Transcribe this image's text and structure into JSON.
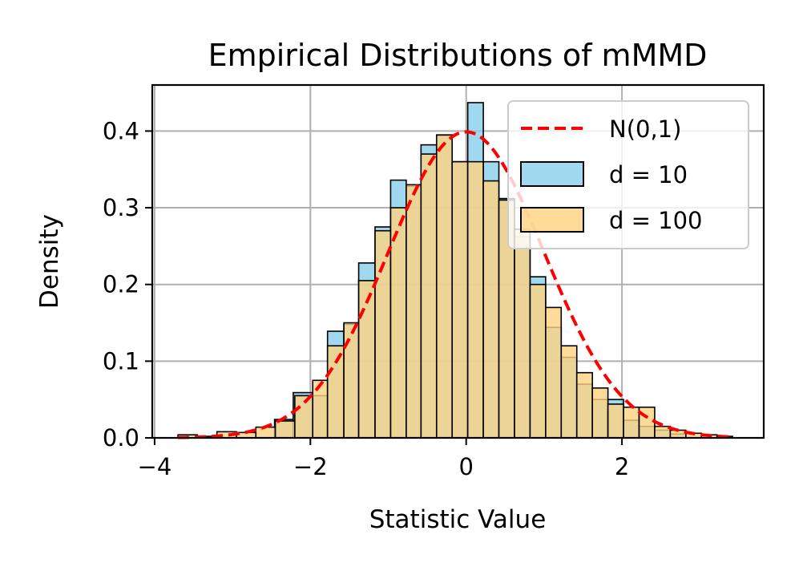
{
  "chart_data": {
    "type": "histogram",
    "title": "Empirical Distributions of mMMD",
    "xlabel": "Statistic Value",
    "ylabel": "Density",
    "xlim": [
      -4.03,
      3.82
    ],
    "ylim": [
      0.0,
      0.46
    ],
    "xticks": [
      -4,
      -2,
      0,
      2
    ],
    "xtick_labels": [
      "−4",
      "−2",
      "0",
      "2"
    ],
    "yticks": [
      0.0,
      0.1,
      0.2,
      0.3,
      0.4
    ],
    "ytick_labels": [
      "0.0",
      "0.1",
      "0.2",
      "0.3",
      "0.4"
    ],
    "grid": true,
    "legend": {
      "location": "upper right",
      "entries": [
        {
          "label": "N(0,1)",
          "kind": "line",
          "color": "#ff0000",
          "style": "dashed"
        },
        {
          "label": "d = 10",
          "kind": "patch",
          "color": "#87ceeb"
        },
        {
          "label": "d = 100",
          "kind": "patch",
          "color": "#ffd27f"
        }
      ]
    },
    "series": [
      {
        "name": "d = 10",
        "color": "#87ceeb",
        "alpha": 0.8,
        "bins": [
          {
            "x0": -2.46,
            "x1": -2.22,
            "density": 0.024
          },
          {
            "x0": -2.22,
            "x1": -1.97,
            "density": 0.059
          },
          {
            "x0": -1.97,
            "x1": -1.78,
            "density": 0.055
          },
          {
            "x0": -1.78,
            "x1": -1.57,
            "density": 0.139
          },
          {
            "x0": -1.57,
            "x1": -1.38,
            "density": 0.148
          },
          {
            "x0": -1.38,
            "x1": -1.17,
            "density": 0.228
          },
          {
            "x0": -1.17,
            "x1": -0.97,
            "density": 0.275
          },
          {
            "x0": -0.97,
            "x1": -0.77,
            "density": 0.336
          },
          {
            "x0": -0.77,
            "x1": -0.58,
            "density": 0.328
          },
          {
            "x0": -0.58,
            "x1": -0.38,
            "density": 0.382
          },
          {
            "x0": -0.38,
            "x1": -0.18,
            "density": 0.394
          },
          {
            "x0": -0.18,
            "x1": 0.02,
            "density": 0.36
          },
          {
            "x0": 0.02,
            "x1": 0.22,
            "density": 0.437
          },
          {
            "x0": 0.22,
            "x1": 0.42,
            "density": 0.36
          },
          {
            "x0": 0.42,
            "x1": 0.62,
            "density": 0.312
          },
          {
            "x0": 0.62,
            "x1": 0.82,
            "density": 0.262
          },
          {
            "x0": 0.82,
            "x1": 1.02,
            "density": 0.21
          },
          {
            "x0": 1.02,
            "x1": 1.22,
            "density": 0.144
          },
          {
            "x0": 1.22,
            "x1": 1.42,
            "density": 0.105
          },
          {
            "x0": 1.42,
            "x1": 1.62,
            "density": 0.07
          },
          {
            "x0": 1.62,
            "x1": 1.82,
            "density": 0.05
          },
          {
            "x0": 1.82,
            "x1": 2.02,
            "density": 0.05
          },
          {
            "x0": 2.02,
            "x1": 2.22,
            "density": 0.023
          },
          {
            "x0": 2.22,
            "x1": 2.42,
            "density": 0.015
          },
          {
            "x0": 2.42,
            "x1": 2.62,
            "density": 0.01
          },
          {
            "x0": 2.62,
            "x1": 2.82,
            "density": 0.005
          }
        ]
      },
      {
        "name": "d = 100",
        "color": "#ffd27f",
        "alpha": 0.8,
        "bins": [
          {
            "x0": -3.7,
            "x1": -3.45,
            "density": 0.004
          },
          {
            "x0": -3.45,
            "x1": -3.2,
            "density": 0.002
          },
          {
            "x0": -3.2,
            "x1": -2.95,
            "density": 0.008
          },
          {
            "x0": -2.95,
            "x1": -2.7,
            "density": 0.007
          },
          {
            "x0": -2.7,
            "x1": -2.45,
            "density": 0.014
          },
          {
            "x0": -2.45,
            "x1": -2.2,
            "density": 0.022
          },
          {
            "x0": -2.2,
            "x1": -1.97,
            "density": 0.055
          },
          {
            "x0": -1.97,
            "x1": -1.78,
            "density": 0.075
          },
          {
            "x0": -1.78,
            "x1": -1.57,
            "density": 0.12
          },
          {
            "x0": -1.57,
            "x1": -1.38,
            "density": 0.15
          },
          {
            "x0": -1.38,
            "x1": -1.17,
            "density": 0.205
          },
          {
            "x0": -1.17,
            "x1": -0.97,
            "density": 0.27
          },
          {
            "x0": -0.97,
            "x1": -0.77,
            "density": 0.3
          },
          {
            "x0": -0.77,
            "x1": -0.58,
            "density": 0.33
          },
          {
            "x0": -0.58,
            "x1": -0.38,
            "density": 0.37
          },
          {
            "x0": -0.38,
            "x1": -0.18,
            "density": 0.395
          },
          {
            "x0": -0.18,
            "x1": 0.02,
            "density": 0.36
          },
          {
            "x0": 0.02,
            "x1": 0.22,
            "density": 0.36
          },
          {
            "x0": 0.22,
            "x1": 0.42,
            "density": 0.335
          },
          {
            "x0": 0.42,
            "x1": 0.62,
            "density": 0.31
          },
          {
            "x0": 0.62,
            "x1": 0.82,
            "density": 0.272
          },
          {
            "x0": 0.82,
            "x1": 1.02,
            "density": 0.2
          },
          {
            "x0": 1.02,
            "x1": 1.22,
            "density": 0.17
          },
          {
            "x0": 1.22,
            "x1": 1.42,
            "density": 0.12
          },
          {
            "x0": 1.42,
            "x1": 1.62,
            "density": 0.085
          },
          {
            "x0": 1.62,
            "x1": 1.82,
            "density": 0.065
          },
          {
            "x0": 1.82,
            "x1": 2.02,
            "density": 0.044
          },
          {
            "x0": 2.02,
            "x1": 2.22,
            "density": 0.04
          },
          {
            "x0": 2.22,
            "x1": 2.42,
            "density": 0.04
          },
          {
            "x0": 2.42,
            "x1": 2.62,
            "density": 0.015
          },
          {
            "x0": 2.62,
            "x1": 2.82,
            "density": 0.01
          },
          {
            "x0": 2.82,
            "x1": 3.02,
            "density": 0.006
          },
          {
            "x0": 3.02,
            "x1": 3.22,
            "density": 0.004
          },
          {
            "x0": 3.22,
            "x1": 3.42,
            "density": 0.002
          }
        ]
      }
    ],
    "reference_curve": {
      "name": "N(0,1)",
      "type": "normal_pdf",
      "mean": 0,
      "sd": 1,
      "x_range": [
        -3.7,
        3.4
      ],
      "color": "#ff0000",
      "style": "dashed"
    }
  }
}
